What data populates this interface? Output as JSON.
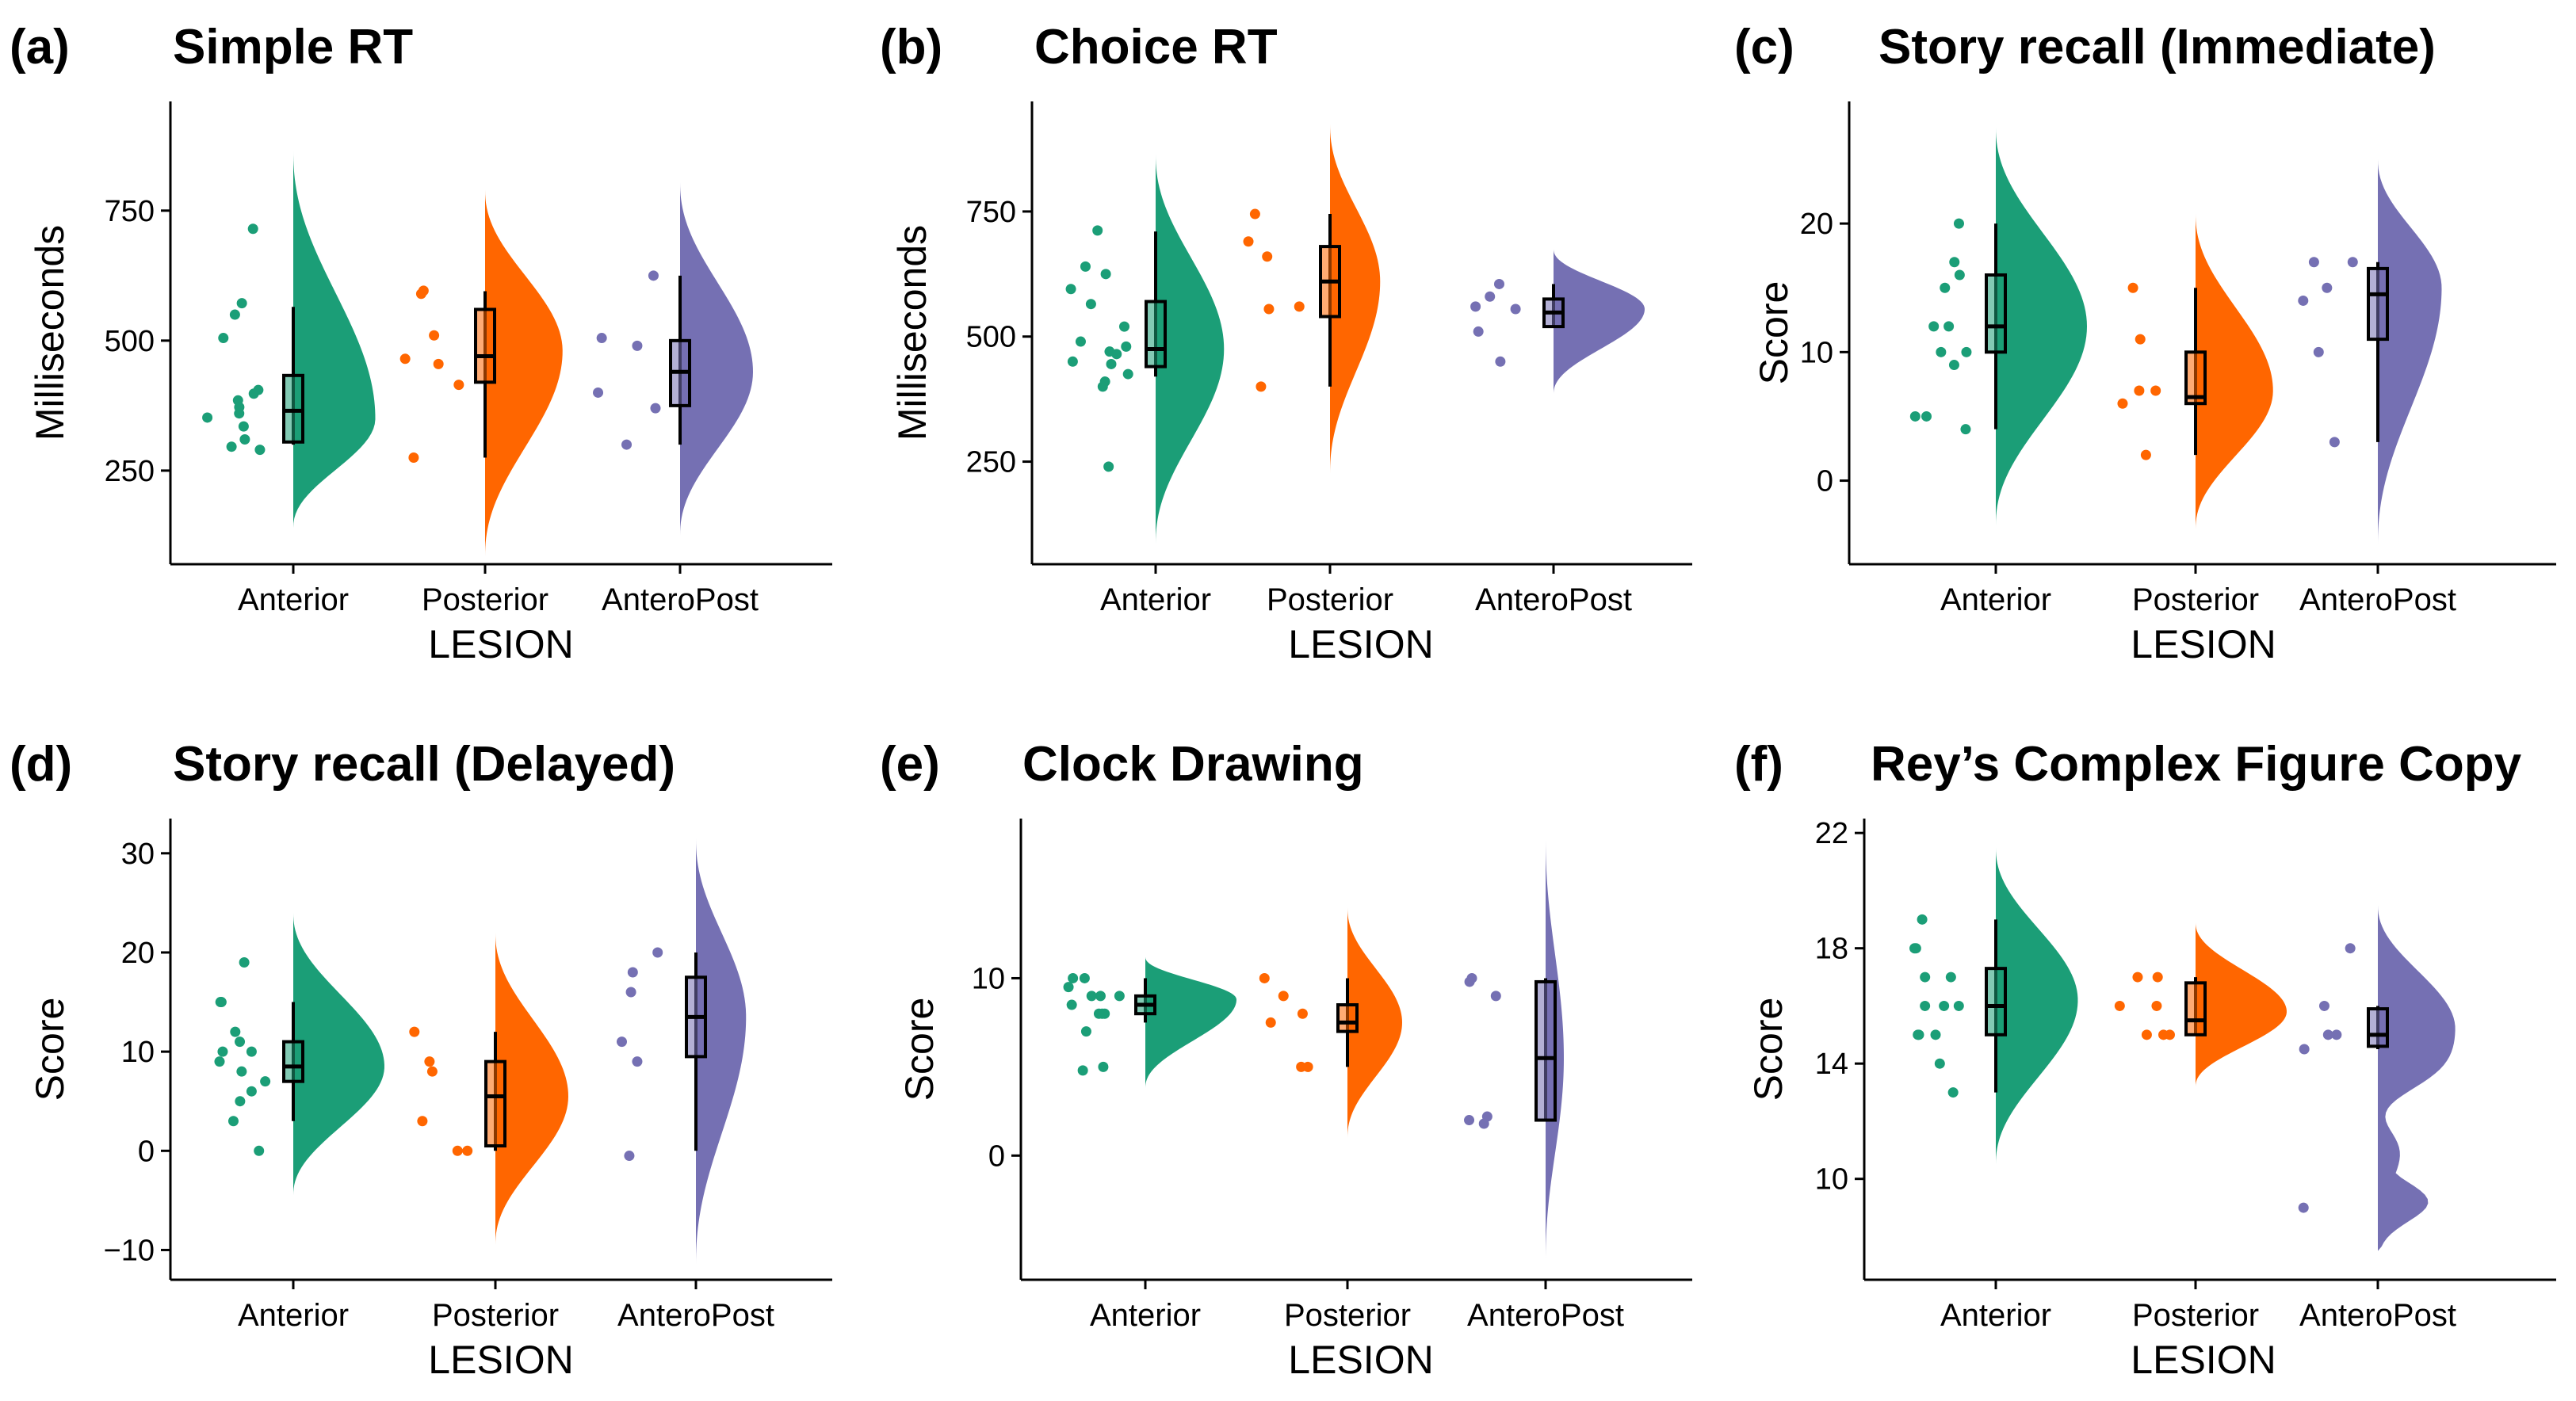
{
  "colors": {
    "Anterior": "#1B9E77",
    "Posterior": "#FF6600",
    "AnteroPost": "#7570B3"
  },
  "chart_data": [
    {
      "type": "raincloud",
      "label": "(a)",
      "title": "Simple RT",
      "xlabel": "LESION",
      "ylabel": "Milliseconds",
      "categories": [
        "Anterior",
        "Posterior",
        "AnteroPost"
      ],
      "ylim": [
        70,
        960
      ],
      "yticks": [
        250,
        500,
        750
      ],
      "groups": [
        {
          "name": "Anterior",
          "points": [
            715,
            572,
            550,
            505,
            405,
            398,
            385,
            372,
            360,
            352,
            335,
            310,
            296,
            290
          ],
          "box": {
            "min": 300,
            "q1": 305,
            "median": 365,
            "q3": 433,
            "max": 565
          },
          "violin": {
            "lo": 140,
            "hi": 865,
            "mode": 350,
            "width": 0.9
          }
        },
        {
          "name": "Posterior",
          "points": [
            590,
            596,
            510,
            465,
            455,
            415,
            275
          ],
          "box": {
            "min": 275,
            "q1": 420,
            "median": 470,
            "q3": 560,
            "max": 595
          },
          "violin": {
            "lo": 85,
            "hi": 790,
            "mode": 480,
            "width": 0.85
          }
        },
        {
          "name": "AnteroPost",
          "points": [
            625,
            505,
            490,
            400,
            370,
            300
          ],
          "box": {
            "min": 300,
            "q1": 375,
            "median": 440,
            "q3": 500,
            "max": 625
          },
          "violin": {
            "lo": 125,
            "hi": 805,
            "mode": 440,
            "width": 0.8
          }
        }
      ]
    },
    {
      "type": "raincloud",
      "label": "(b)",
      "title": "Choice RT",
      "xlabel": "LESION",
      "ylabel": "Milliseconds",
      "categories": [
        "Anterior",
        "Posterior",
        "AnteroPost"
      ],
      "ylim": [
        45,
        970
      ],
      "yticks": [
        250,
        500,
        750
      ],
      "groups": [
        {
          "name": "Anterior",
          "points": [
            712,
            640,
            625,
            595,
            565,
            520,
            490,
            480,
            470,
            465,
            450,
            445,
            425,
            410,
            400,
            240
          ],
          "box": {
            "min": 420,
            "q1": 440,
            "median": 475,
            "q3": 570,
            "max": 710
          },
          "violin": {
            "lo": 85,
            "hi": 865,
            "mode": 475,
            "width": 0.75
          }
        },
        {
          "name": "Posterior",
          "points": [
            745,
            690,
            660,
            560,
            555,
            400
          ],
          "box": {
            "min": 400,
            "q1": 540,
            "median": 610,
            "q3": 680,
            "max": 745
          },
          "violin": {
            "lo": 225,
            "hi": 925,
            "mode": 610,
            "width": 0.55
          }
        },
        {
          "name": "AnteroPost",
          "points": [
            605,
            580,
            560,
            555,
            510,
            450
          ],
          "box": {
            "min": 520,
            "q1": 520,
            "median": 548,
            "q3": 575,
            "max": 605
          },
          "violin": {
            "lo": 385,
            "hi": 675,
            "mode": 555,
            "width": 1.0
          }
        }
      ]
    },
    {
      "type": "raincloud",
      "label": "(c)",
      "title": "Story recall (Immediate)",
      "xlabel": "LESION",
      "ylabel": "Score",
      "categories": [
        "Anterior",
        "Posterior",
        "AnteroPost"
      ],
      "ylim": [
        -6.5,
        29.5
      ],
      "yticks": [
        0,
        10,
        20
      ],
      "groups": [
        {
          "name": "Anterior",
          "points": [
            20,
            17,
            16,
            15,
            12,
            12,
            10,
            10,
            9,
            5,
            5,
            4
          ],
          "box": {
            "min": 4,
            "q1": 10,
            "median": 12,
            "q3": 16,
            "max": 20
          },
          "violin": {
            "lo": -3.5,
            "hi": 27.5,
            "mode": 12,
            "width": 1.0
          }
        },
        {
          "name": "Posterior",
          "points": [
            15,
            11,
            7,
            7,
            6,
            2
          ],
          "box": {
            "min": 2,
            "q1": 6,
            "median": 6.5,
            "q3": 10,
            "max": 15
          },
          "violin": {
            "lo": -3.8,
            "hi": 20.8,
            "mode": 7,
            "width": 0.85
          }
        },
        {
          "name": "AnteroPost",
          "points": [
            17,
            17,
            15,
            14,
            10,
            3
          ],
          "box": {
            "min": 3,
            "q1": 11,
            "median": 14.5,
            "q3": 16.5,
            "max": 17
          },
          "violin": {
            "lo": -5,
            "hi": 25,
            "mode": 15,
            "width": 0.7
          }
        }
      ]
    },
    {
      "type": "raincloud",
      "label": "(d)",
      "title": "Story recall (Delayed)",
      "xlabel": "LESION",
      "ylabel": "Score",
      "categories": [
        "Anterior",
        "Posterior",
        "AnteroPost"
      ],
      "ylim": [
        -13,
        33.5
      ],
      "yticks": [
        -10,
        0,
        10,
        20,
        30
      ],
      "groups": [
        {
          "name": "Anterior",
          "points": [
            19,
            15,
            15,
            12,
            11,
            10,
            10,
            9,
            8,
            7,
            6,
            5,
            3,
            0
          ],
          "box": {
            "min": 3,
            "q1": 7,
            "median": 8.5,
            "q3": 11,
            "max": 15
          },
          "violin": {
            "lo": -4.5,
            "hi": 24,
            "mode": 8.5,
            "width": 1.0
          }
        },
        {
          "name": "Posterior",
          "points": [
            12,
            9,
            8,
            3,
            0,
            0
          ],
          "box": {
            "min": 0,
            "q1": 0.5,
            "median": 5.5,
            "q3": 9,
            "max": 12
          },
          "violin": {
            "lo": -9.5,
            "hi": 22,
            "mode": 5.5,
            "width": 0.8
          }
        },
        {
          "name": "AnteroPost",
          "points": [
            20,
            18,
            16,
            11,
            9,
            -0.5
          ],
          "box": {
            "min": 0,
            "q1": 9.5,
            "median": 13.5,
            "q3": 17.5,
            "max": 20
          },
          "violin": {
            "lo": -11.5,
            "hi": 31.5,
            "mode": 13.5,
            "width": 0.55
          }
        }
      ]
    },
    {
      "type": "raincloud",
      "label": "(e)",
      "title": "Clock Drawing",
      "xlabel": "LESION",
      "ylabel": "Score",
      "categories": [
        "Anterior",
        "Posterior",
        "AnteroPost"
      ],
      "ylim": [
        -7,
        19
      ],
      "yticks": [
        0,
        10
      ],
      "groups": [
        {
          "name": "Anterior",
          "points": [
            10,
            10,
            9.5,
            9,
            9,
            9,
            8.5,
            8,
            8,
            8,
            7,
            5,
            4.8
          ],
          "box": {
            "min": 7.5,
            "q1": 8,
            "median": 8.5,
            "q3": 9,
            "max": 10
          },
          "violin": {
            "lo": 3.8,
            "hi": 11.2,
            "mode": 8.8,
            "width": 1.0
          }
        },
        {
          "name": "Posterior",
          "points": [
            10,
            9,
            8,
            7.5,
            5,
            5
          ],
          "box": {
            "min": 5,
            "q1": 7,
            "median": 7.5,
            "q3": 8.5,
            "max": 10
          },
          "violin": {
            "lo": 1,
            "hi": 14,
            "mode": 7.5,
            "width": 0.6
          }
        },
        {
          "name": "AnteroPost",
          "points": [
            10,
            9.8,
            9,
            2.2,
            2,
            1.8
          ],
          "box": {
            "min": 2,
            "q1": 2,
            "median": 5.5,
            "q3": 9.8,
            "max": 10
          },
          "violin": {
            "lo": -6,
            "hi": 18,
            "mode": 5.5,
            "width": 0.2
          }
        }
      ]
    },
    {
      "type": "raincloud",
      "label": "(f)",
      "title": "Rey’s Complex Figure Copy",
      "xlabel": "LESION",
      "ylabel": "Score",
      "categories": [
        "Anterior",
        "Posterior",
        "AnteroPost"
      ],
      "ylim": [
        6.5,
        22.5
      ],
      "yticks": [
        10,
        14,
        18,
        22
      ],
      "groups": [
        {
          "name": "Anterior",
          "points": [
            19,
            18,
            18,
            17,
            17,
            16,
            16,
            16,
            15,
            15,
            15,
            14,
            13
          ],
          "box": {
            "min": 13,
            "q1": 15,
            "median": 16,
            "q3": 17.3,
            "max": 19
          },
          "violin": {
            "lo": 10.5,
            "hi": 21.5,
            "mode": 16.2,
            "width": 0.9
          }
        },
        {
          "name": "Posterior",
          "points": [
            17,
            17,
            16,
            16,
            15,
            15,
            15
          ],
          "box": {
            "min": 15,
            "q1": 15,
            "median": 15.5,
            "q3": 16.8,
            "max": 17
          },
          "violin": {
            "lo": 13.2,
            "hi": 18.9,
            "mode": 15.8,
            "width": 1.0
          }
        },
        {
          "name": "AnteroPost",
          "points": [
            18,
            16,
            15,
            15,
            14.5,
            9
          ],
          "box": {
            "min": 14.5,
            "q1": 14.6,
            "median": 15,
            "q3": 15.9,
            "max": 16
          },
          "violin": {
            "lo": 7.5,
            "hi": 19.5,
            "mode": 15.2,
            "width": 0.85,
            "mode2": 9.2
          }
        }
      ]
    }
  ]
}
